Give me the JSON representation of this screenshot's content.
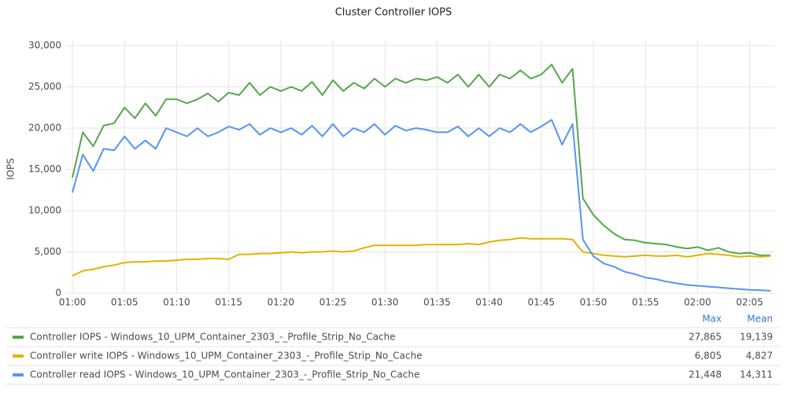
{
  "chart_data": {
    "type": "line",
    "title": "Cluster Controller IOPS",
    "y_label": "IOPS",
    "x": [
      "01:00",
      "01:01",
      "01:02",
      "01:03",
      "01:04",
      "01:05",
      "01:06",
      "01:07",
      "01:08",
      "01:09",
      "01:10",
      "01:11",
      "01:12",
      "01:13",
      "01:14",
      "01:15",
      "01:16",
      "01:17",
      "01:18",
      "01:19",
      "01:20",
      "01:21",
      "01:22",
      "01:23",
      "01:24",
      "01:25",
      "01:26",
      "01:27",
      "01:28",
      "01:29",
      "01:30",
      "01:31",
      "01:32",
      "01:33",
      "01:34",
      "01:35",
      "01:36",
      "01:37",
      "01:38",
      "01:39",
      "01:40",
      "01:41",
      "01:42",
      "01:43",
      "01:44",
      "01:45",
      "01:46",
      "01:47",
      "01:48",
      "01:49",
      "01:50",
      "01:51",
      "01:52",
      "01:53",
      "01:54",
      "01:55",
      "01:56",
      "01:57",
      "01:58",
      "01:59",
      "02:00",
      "02:01",
      "02:02",
      "02:03",
      "02:04",
      "02:05",
      "02:06",
      "02:07"
    ],
    "xlim": [
      "01:00",
      "02:07"
    ],
    "xticks": [
      "01:00",
      "01:05",
      "01:10",
      "01:15",
      "01:20",
      "01:25",
      "01:30",
      "01:35",
      "01:40",
      "01:45",
      "01:50",
      "01:55",
      "02:00",
      "02:05"
    ],
    "ylim": [
      0,
      30000
    ],
    "yticks": [
      0,
      {
        "value": 5000,
        "label": "5,000"
      },
      {
        "value": 10000,
        "label": "10,000"
      },
      {
        "value": 15000,
        "label": "15,000"
      },
      {
        "value": 20000,
        "label": "20,000"
      },
      {
        "value": 25000,
        "label": "25,000"
      },
      {
        "value": 30000,
        "label": "30,000"
      }
    ],
    "grid": true,
    "legend_columns": [
      "Max",
      "Mean"
    ],
    "series": [
      {
        "name": "Controller IOPS - Windows_10_UPM_Container_2303_-_Profile_Strip_No_Cache",
        "color": "#56a64b",
        "values": [
          14000,
          19500,
          17800,
          20300,
          20600,
          22500,
          21200,
          23000,
          21500,
          23500,
          23500,
          23000,
          23500,
          24200,
          23200,
          24300,
          24000,
          25500,
          24000,
          25000,
          24500,
          25000,
          24500,
          25600,
          24000,
          25800,
          24500,
          25500,
          24800,
          26000,
          25000,
          26000,
          25500,
          26000,
          25800,
          26200,
          25500,
          26500,
          25000,
          26500,
          25000,
          26500,
          26000,
          27000,
          26000,
          26500,
          27700,
          25500,
          27200,
          11500,
          9500,
          8200,
          7200,
          6500,
          6400,
          6100,
          6000,
          5900,
          5600,
          5400,
          5600,
          5200,
          5500,
          5000,
          4800,
          4900,
          4600,
          4600
        ],
        "stats": {
          "values": [
            27865,
            19139
          ],
          "value_labels": [
            "27,865",
            "19,139"
          ]
        }
      },
      {
        "name": "Controller write IOPS - Windows_10_UPM_Container_2303_-_Profile_Strip_No_Cache",
        "color": "#e0b400",
        "values": [
          2100,
          2700,
          2900,
          3200,
          3400,
          3700,
          3800,
          3800,
          3900,
          3900,
          4000,
          4100,
          4100,
          4200,
          4200,
          4100,
          4700,
          4700,
          4800,
          4800,
          4900,
          5000,
          4900,
          5000,
          5000,
          5100,
          5000,
          5100,
          5500,
          5800,
          5800,
          5800,
          5800,
          5800,
          5900,
          5900,
          5900,
          5900,
          6000,
          5900,
          6200,
          6400,
          6500,
          6700,
          6600,
          6600,
          6600,
          6600,
          6500,
          5000,
          4800,
          4600,
          4500,
          4400,
          4500,
          4600,
          4500,
          4500,
          4600,
          4400,
          4600,
          4800,
          4700,
          4600,
          4400,
          4500,
          4400,
          4500
        ],
        "stats": {
          "values": [
            6805,
            4827
          ],
          "value_labels": [
            "6,805",
            "4,827"
          ]
        }
      },
      {
        "name": "Controller read IOPS - Windows_10_UPM_Container_2303_-_Profile_Strip_No_Cache",
        "color": "#5794f2",
        "values": [
          12200,
          16800,
          14800,
          17500,
          17300,
          19000,
          17500,
          18500,
          17500,
          20000,
          19500,
          19000,
          20000,
          19000,
          19500,
          20200,
          19800,
          20500,
          19200,
          20000,
          19500,
          20000,
          19200,
          20300,
          19000,
          20500,
          19000,
          20000,
          19500,
          20500,
          19200,
          20300,
          19700,
          20000,
          19800,
          19500,
          19500,
          20200,
          19000,
          20000,
          19000,
          20000,
          19500,
          20500,
          19500,
          20200,
          21000,
          18000,
          20500,
          6500,
          4500,
          3600,
          3200,
          2600,
          2300,
          1900,
          1700,
          1400,
          1200,
          1000,
          900,
          800,
          700,
          600,
          500,
          400,
          350,
          300
        ],
        "stats": {
          "values": [
            21448,
            14311
          ],
          "value_labels": [
            "21,448",
            "14,311"
          ]
        }
      }
    ]
  }
}
